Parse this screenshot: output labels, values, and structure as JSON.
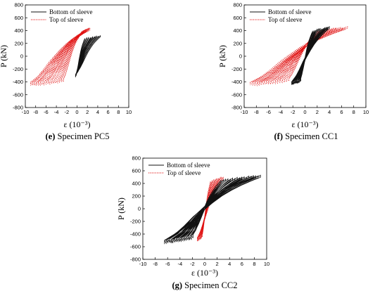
{
  "colors": {
    "bottom": "#111111",
    "top": "#e01010",
    "frame": "#000000"
  },
  "chart_data": [
    {
      "type": "line",
      "xlabel": "ε (10⁻³)",
      "ylabel": "P (kN)",
      "caption_letter": "(e)",
      "caption_text": " Specimen PC5",
      "xlim": [
        -10,
        10
      ],
      "ylim": [
        -800,
        800
      ],
      "xticks": [
        -10,
        -8,
        -6,
        -4,
        -2,
        0,
        2,
        4,
        6,
        8,
        10
      ],
      "yticks": [
        800,
        600,
        400,
        200,
        0,
        -200,
        -400,
        -600,
        -800
      ],
      "legend_position": "top-left",
      "series": [
        {
          "name": "Bottom of sleeve",
          "style": "solid",
          "color": "#111111",
          "hysteresis": {
            "x_pos": 4.5,
            "x_neg": -0.3,
            "p_pos": 330,
            "p_neg": -330,
            "loops": 9
          }
        },
        {
          "name": "Top of sleeve",
          "style": "dotted",
          "color": "#e01010",
          "hysteresis": {
            "x_pos": 2.5,
            "x_neg": -9.0,
            "p_pos": 450,
            "p_neg": -470,
            "loops": 18
          }
        }
      ]
    },
    {
      "type": "line",
      "xlabel": "ε (10⁻³)",
      "ylabel": "P (kN)",
      "caption_letter": "(f)",
      "caption_text": " Specimen CC1",
      "xlim": [
        -10,
        10
      ],
      "ylim": [
        -800,
        800
      ],
      "xticks": [
        -10,
        -8,
        -6,
        -4,
        -2,
        0,
        2,
        4,
        6,
        8,
        10
      ],
      "yticks": [
        800,
        600,
        400,
        200,
        0,
        -200,
        -400,
        -600,
        -800
      ],
      "legend_position": "top-left",
      "series": [
        {
          "name": "Bottom of sleeve",
          "style": "solid",
          "color": "#111111",
          "hysteresis": {
            "x_pos": 4.0,
            "x_neg": -2.2,
            "p_pos": 470,
            "p_neg": -460,
            "loops": 12
          }
        },
        {
          "name": "Top of sleeve",
          "style": "dotted",
          "color": "#e01010",
          "hysteresis": {
            "x_pos": 7.0,
            "x_neg": -9.0,
            "p_pos": 470,
            "p_neg": -470,
            "loops": 18
          }
        }
      ]
    },
    {
      "type": "line",
      "xlabel": "ε (10⁻³)",
      "ylabel": "P (kN)",
      "caption_letter": "(g)",
      "caption_text": " Specimen CC2",
      "xlim": [
        -10,
        10
      ],
      "ylim": [
        -800,
        800
      ],
      "xticks": [
        -10,
        -8,
        -6,
        -4,
        -2,
        0,
        2,
        4,
        6,
        8,
        10
      ],
      "yticks": [
        800,
        600,
        400,
        200,
        0,
        -200,
        -400,
        -600,
        -800
      ],
      "legend_position": "top-left",
      "series": [
        {
          "name": "Bottom of sleeve",
          "style": "solid",
          "color": "#111111",
          "hysteresis": {
            "x_pos": 9.0,
            "x_neg": -6.5,
            "p_pos": 540,
            "p_neg": -560,
            "loops": 18
          }
        },
        {
          "name": "Top of sleeve",
          "style": "dotted",
          "color": "#e01010",
          "hysteresis": {
            "x_pos": 3.0,
            "x_neg": -1.2,
            "p_pos": 520,
            "p_neg": -520,
            "loops": 14
          }
        }
      ]
    }
  ]
}
